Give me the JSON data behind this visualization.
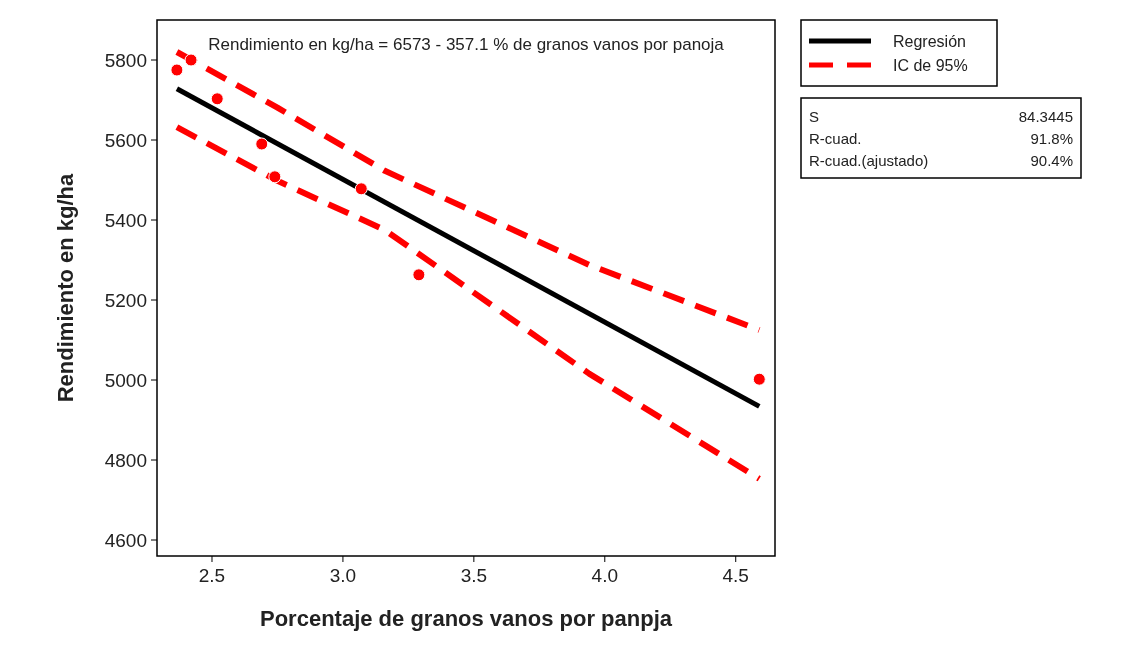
{
  "chart_data": {
    "type": "scatter",
    "title": "Rendimiento en kg/ha = 6573 - 357.1 % de granos vanos por panoja",
    "xlabel": "Porcentaje de granos vanos por panpja",
    "ylabel": "Rendimiento en kg/ha",
    "xlim": [
      2.29,
      4.65
    ],
    "ylim": [
      4560,
      5900
    ],
    "xticks": [
      2.5,
      {
        "value": 3,
        "label": "3.0"
      },
      3.5,
      {
        "value": 4,
        "label": "4.0"
      },
      4.5
    ],
    "yticks": [
      4600,
      4800,
      5000,
      5200,
      5400,
      5600,
      5800
    ],
    "legend": "top right",
    "grid": false,
    "annotations": [
      "S 84.3445",
      "R-cuad. 91.8%",
      "R-cuad.(ajustado) 90.4%"
    ],
    "series": [
      {
        "type": "scatter",
        "color": "#ff0000",
        "marker": "circle",
        "x": [
          2.366,
          2.42,
          2.52,
          2.69,
          2.74,
          3.07,
          3.29,
          4.59
        ],
        "values": [
          5775,
          5800,
          5703,
          5590,
          5508,
          5478,
          5263,
          5002
        ]
      },
      {
        "type": "line",
        "name": "Regresión",
        "color": "#000000",
        "line_style": "solid",
        "x": [
          2.366,
          4.59
        ],
        "values": [
          5728,
          4934
        ]
      },
      {
        "type": "line",
        "name": "IC de 95%",
        "color": "#ff0000",
        "line_style": "dashed",
        "x": [
          2.366,
          2.75,
          3.16,
          3.94,
          4.59
        ],
        "values": [
          5820,
          5681,
          5523,
          5288,
          5125
        ]
      },
      {
        "type": "line",
        "color": "#ff0000",
        "line_style": "dashed",
        "x": [
          2.366,
          2.75,
          3.16,
          3.94,
          4.59
        ],
        "values": [
          5632,
          5498,
          5375,
          5016,
          4753
        ]
      }
    ]
  }
}
